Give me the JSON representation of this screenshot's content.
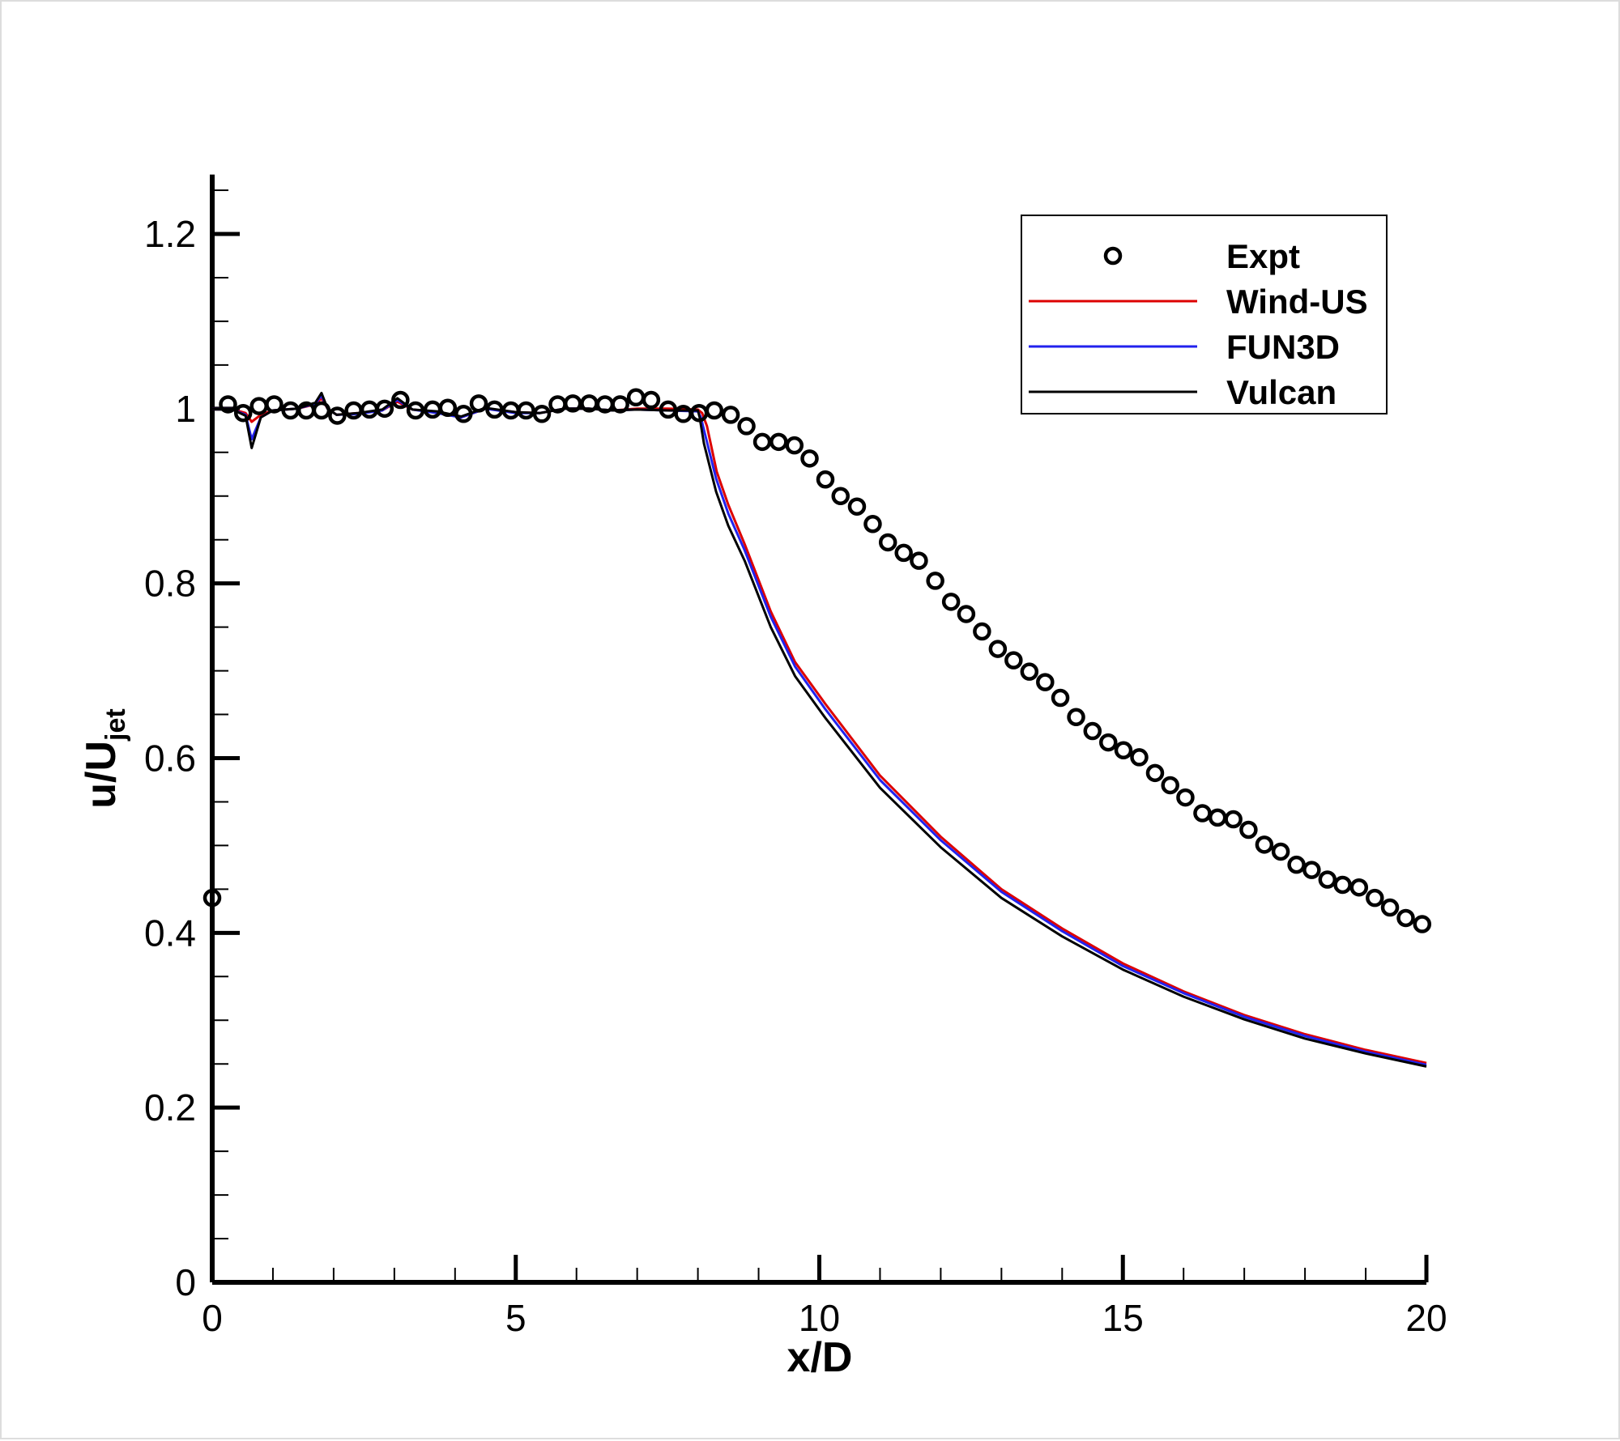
{
  "chart_data": {
    "type": "line",
    "title": "",
    "xlabel": "x/D",
    "ylabel_main": "u/U",
    "ylabel_sub": "jet",
    "xlim": [
      0,
      20
    ],
    "ylim": [
      0,
      1.2
    ],
    "xticks": [
      "0",
      "5",
      "10",
      "15",
      "20"
    ],
    "yticks": [
      "0",
      "0.2",
      "0.4",
      "0.6",
      "0.8",
      "1",
      "1.2"
    ],
    "grid": false,
    "legend_position": "top-right",
    "series": [
      {
        "name": "Expt",
        "kind": "markers",
        "color": "#000000",
        "x": [
          0,
          0.26,
          0.51,
          0.77,
          1.02,
          1.29,
          1.55,
          1.8,
          2.06,
          2.33,
          2.59,
          2.84,
          3.1,
          3.35,
          3.63,
          3.88,
          4.14,
          4.39,
          4.65,
          4.92,
          5.17,
          5.43,
          5.69,
          5.94,
          6.21,
          6.47,
          6.72,
          6.98,
          7.23,
          7.51,
          7.76,
          8.02,
          8.27,
          8.54,
          8.8,
          9.06,
          9.33,
          9.59,
          9.84,
          10.1,
          10.35,
          10.62,
          10.88,
          11.13,
          11.39,
          11.64,
          11.91,
          12.17,
          12.42,
          12.68,
          12.94,
          13.2,
          13.46,
          13.72,
          13.97,
          14.23,
          14.5,
          14.76,
          15.01,
          15.27,
          15.53,
          15.78,
          16.03,
          16.31,
          16.56,
          16.82,
          17.07,
          17.33,
          17.6,
          17.86,
          18.11,
          18.37,
          18.62,
          18.89,
          19.15,
          19.4,
          19.66,
          19.93
        ],
        "y": [
          0.44,
          1.005,
          0.995,
          1.003,
          1.005,
          0.998,
          0.998,
          0.998,
          0.992,
          0.998,
          0.999,
          1.0,
          1.01,
          0.998,
          0.999,
          1.001,
          0.994,
          1.006,
          0.999,
          0.998,
          0.998,
          0.994,
          1.005,
          1.006,
          1.006,
          1.005,
          1.005,
          1.013,
          1.01,
          0.999,
          0.994,
          0.995,
          0.998,
          0.993,
          0.98,
          0.962,
          0.962,
          0.958,
          0.943,
          0.919,
          0.9,
          0.888,
          0.868,
          0.847,
          0.835,
          0.826,
          0.803,
          0.779,
          0.765,
          0.745,
          0.725,
          0.712,
          0.699,
          0.687,
          0.669,
          0.647,
          0.631,
          0.618,
          0.609,
          0.601,
          0.583,
          0.569,
          0.555,
          0.537,
          0.532,
          0.53,
          0.518,
          0.501,
          0.493,
          0.478,
          0.472,
          0.461,
          0.455,
          0.452,
          0.44,
          0.429,
          0.417,
          0.41
        ]
      },
      {
        "name": "Wind-US",
        "kind": "line",
        "color": "#dd0000",
        "x": [
          0,
          0.3,
          0.55,
          0.65,
          0.8,
          1.0,
          1.4,
          1.7,
          1.8,
          1.9,
          2.05,
          2.4,
          2.8,
          3.05,
          3.3,
          3.7,
          4.1,
          4.5,
          5.0,
          5.4,
          5.8,
          6.2,
          6.6,
          7.0,
          7.5,
          8.0,
          8.07,
          8.15,
          8.31,
          8.5,
          8.77,
          9.2,
          9.6,
          10.1,
          11,
          12,
          13,
          14,
          15,
          16,
          17,
          18,
          19,
          20
        ],
        "y": [
          1.0,
          1.0,
          0.995,
          0.985,
          0.993,
          0.998,
          1.0,
          1.005,
          1.012,
          1.0,
          0.993,
          0.995,
          0.998,
          1.008,
          0.999,
          0.996,
          0.99,
          1.0,
          0.996,
          0.995,
          1.0,
          1.0,
          0.998,
          1.0,
          1.0,
          0.999,
          0.995,
          0.98,
          0.928,
          0.89,
          0.845,
          0.768,
          0.71,
          0.662,
          0.58,
          0.51,
          0.45,
          0.405,
          0.365,
          0.333,
          0.306,
          0.284,
          0.266,
          0.251
        ]
      },
      {
        "name": "FUN3D",
        "kind": "line",
        "color": "#2222ee",
        "x": [
          0,
          0.3,
          0.55,
          0.65,
          0.8,
          1.0,
          1.4,
          1.7,
          1.8,
          1.9,
          2.05,
          2.4,
          2.8,
          3.05,
          3.3,
          3.7,
          4.1,
          4.5,
          5.0,
          5.4,
          5.8,
          6.2,
          6.6,
          7.0,
          7.5,
          8.0,
          8.05,
          8.12,
          8.3,
          8.5,
          8.77,
          9.2,
          9.6,
          10.1,
          11,
          12,
          13,
          14,
          15,
          16,
          17,
          18,
          19,
          20
        ],
        "y": [
          1.0,
          1.0,
          0.993,
          0.965,
          0.99,
          0.998,
          1.0,
          1.006,
          1.015,
          1.0,
          0.993,
          0.994,
          0.998,
          1.01,
          0.999,
          0.995,
          0.99,
          1.0,
          0.995,
          0.995,
          1.0,
          1.0,
          0.998,
          0.999,
          0.998,
          0.997,
          0.99,
          0.97,
          0.92,
          0.88,
          0.838,
          0.762,
          0.705,
          0.656,
          0.575,
          0.506,
          0.447,
          0.402,
          0.362,
          0.331,
          0.304,
          0.282,
          0.264,
          0.249
        ]
      },
      {
        "name": "Vulcan",
        "kind": "line",
        "color": "#000000",
        "x": [
          0,
          0.3,
          0.55,
          0.65,
          0.8,
          1.0,
          1.4,
          1.7,
          1.8,
          1.9,
          2.05,
          2.4,
          2.8,
          3.05,
          3.3,
          3.7,
          4.1,
          4.5,
          5.0,
          5.4,
          5.8,
          6.2,
          6.6,
          7.0,
          7.5,
          8.0,
          8.03,
          8.1,
          8.3,
          8.5,
          8.77,
          9.2,
          9.6,
          10.1,
          11,
          12,
          13,
          14,
          15,
          16,
          17,
          18,
          19,
          20
        ],
        "y": [
          1.0,
          1.0,
          0.992,
          0.955,
          0.99,
          0.998,
          1.0,
          1.007,
          1.018,
          1.0,
          0.993,
          0.995,
          0.999,
          1.012,
          0.999,
          0.997,
          0.991,
          1.001,
          0.996,
          0.995,
          1.0,
          1.0,
          0.998,
          0.999,
          0.998,
          0.998,
          0.99,
          0.96,
          0.905,
          0.866,
          0.826,
          0.75,
          0.694,
          0.646,
          0.566,
          0.498,
          0.44,
          0.396,
          0.358,
          0.327,
          0.301,
          0.279,
          0.262,
          0.247
        ]
      }
    ]
  }
}
